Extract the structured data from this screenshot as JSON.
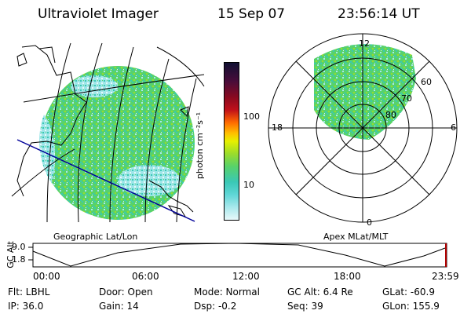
{
  "header": {
    "instrument": "Ultraviolet Imager",
    "date": "15 Sep 07",
    "time": "23:56:14 UT"
  },
  "left_panel": {
    "caption": "Geographic Lat/Lon"
  },
  "right_panel": {
    "caption": "Apex MLat/MLT",
    "mlt_labels": {
      "top": "12",
      "left": "18",
      "right": "6",
      "bottom": "0"
    },
    "lat_labels": [
      "60",
      "70",
      "80"
    ]
  },
  "colorbar": {
    "unit_label": "photon cm⁻²s⁻¹",
    "ticks": [
      "100",
      "10"
    ],
    "colors": [
      "#111133",
      "#8a0a20",
      "#ff6a00",
      "#e6f000",
      "#58d26a",
      "#3ac8b6",
      "#e8f8fa"
    ]
  },
  "altitude_plot": {
    "ylabel": "GC Alt",
    "y_ticks": [
      "9.0",
      "1.8"
    ],
    "x_ticks": [
      "00:00",
      "06:00",
      "12:00",
      "18:00",
      "23:59"
    ]
  },
  "info": {
    "flt": "Flt: LBHL",
    "ip": "IP: 36.0",
    "door": "Door: Open",
    "gain": "Gain: 14",
    "mode": "Mode: Normal",
    "dsp": "Dsp:    -0.2",
    "gc_alt": "GC Alt: 6.4 Re",
    "seq": "Seq: 39",
    "glat": "GLat:  -60.9",
    "glon": "GLon: 155.9"
  }
}
